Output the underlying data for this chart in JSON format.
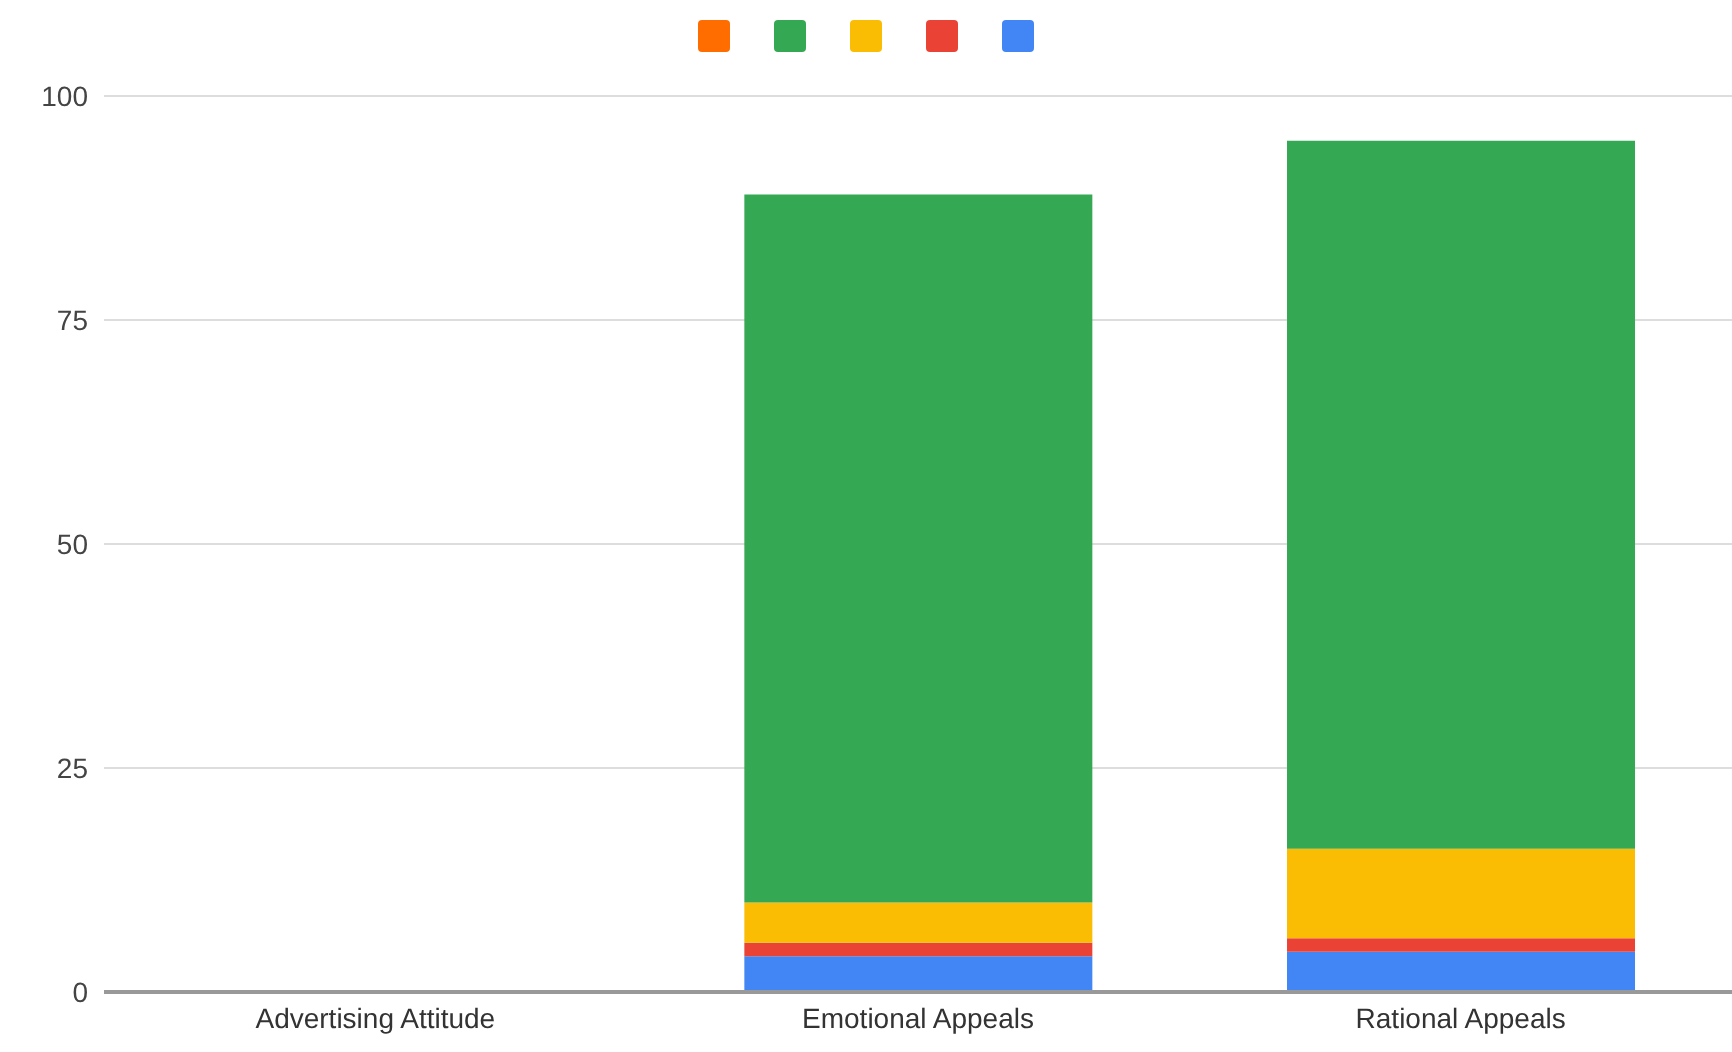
{
  "chart_data": {
    "type": "bar",
    "stacked": true,
    "categories": [
      "Advertising Attitude",
      "Emotional Appeals",
      "Rational Appeals"
    ],
    "series": [
      {
        "color": "#4285f4",
        "values": [
          null,
          4,
          4.5
        ]
      },
      {
        "color": "#ea4335",
        "values": [
          null,
          1.5,
          1.5
        ]
      },
      {
        "color": "#fbbc04",
        "values": [
          null,
          4.5,
          10
        ]
      },
      {
        "color": "#34a853",
        "values": [
          null,
          79,
          79
        ]
      },
      {
        "color": "#ff6d01",
        "values": [
          null,
          null,
          null
        ]
      }
    ],
    "ylim": [
      0,
      100
    ],
    "yticks": [
      0,
      25,
      50,
      75,
      100
    ],
    "grid": "y"
  }
}
